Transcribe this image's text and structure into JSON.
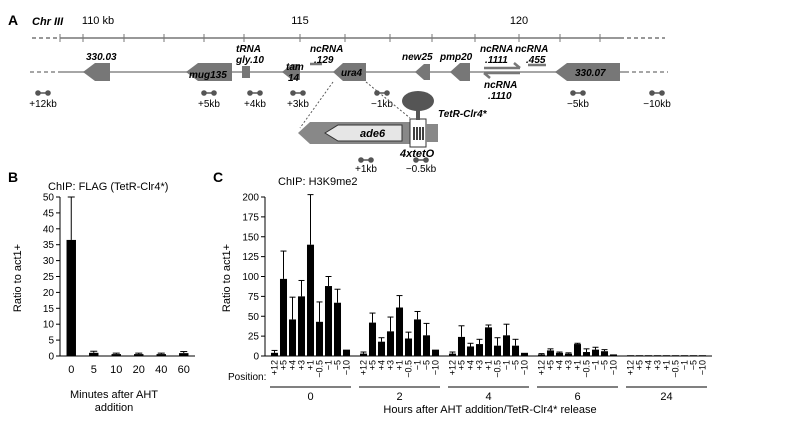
{
  "panel_a": {
    "letter": "A",
    "chr_label": "Chr III",
    "scale_labels": [
      "110 kb",
      "115",
      "120"
    ],
    "genes": [
      "330.03",
      "mug135",
      "tRNA",
      "gly.10",
      "tam",
      "14",
      "ncRNA",
      ".129",
      "ura4",
      "new25",
      "pmp20",
      "ncRNA",
      ".1111",
      "ncRNA",
      ".455",
      "ncRNA",
      ".1110",
      "330.07"
    ],
    "primers": [
      "+12kb",
      "+5kb",
      "+4kb",
      "+3kb",
      "−1kb",
      "−5kb",
      "−10kb"
    ],
    "construct": {
      "gene": "ade6",
      "protein": "TetR-Clr4*",
      "operator": "4xtetO",
      "primers": [
        "+1kb",
        "−0.5kb"
      ]
    }
  },
  "panel_b": {
    "letter": "B",
    "chip_label": "ChIP: FLAG (TetR-Clr4*)",
    "ylabel": "Ratio to act1+",
    "xlabel_line1": "Minutes after AHT",
    "xlabel_line2": "addition"
  },
  "panel_c": {
    "letter": "C",
    "chip_label": "ChIP: H3K9me2",
    "ylabel": "Ratio to act1+",
    "position_label": "Position:",
    "xlabel": "Hours after AHT addition/TetR-Clr4* release"
  },
  "chart_data": [
    {
      "type": "bar",
      "title": "ChIP: FLAG (TetR-Clr4*)",
      "xlabel": "Minutes after AHT addition",
      "ylabel": "Ratio to act1+",
      "categories": [
        "0",
        "5",
        "10",
        "20",
        "40",
        "60"
      ],
      "values": [
        36.5,
        1.0,
        0.6,
        0.6,
        0.6,
        0.9
      ],
      "errors": [
        13.5,
        0.5,
        0.3,
        0.3,
        0.3,
        0.5
      ],
      "ylim": [
        0,
        50
      ],
      "yticks": [
        0,
        5,
        10,
        15,
        20,
        25,
        30,
        35,
        40,
        45,
        50
      ],
      "bar_color": "#000000"
    },
    {
      "type": "bar",
      "title": "ChIP: H3K9me2",
      "xlabel": "Hours after AHT addition/TetR-Clr4* release",
      "ylabel": "Ratio to act1+",
      "ylim": [
        0,
        200
      ],
      "yticks": [
        0,
        25,
        50,
        75,
        100,
        125,
        150,
        175,
        200
      ],
      "positions": [
        "+12",
        "+5",
        "+4",
        "+3",
        "+1",
        "−0.5",
        "−1",
        "−5",
        "−10"
      ],
      "groups": [
        {
          "name": "0",
          "values": [
            4,
            97,
            46,
            75,
            140,
            43,
            88,
            67,
            8
          ],
          "errors": [
            3,
            35,
            28,
            20,
            63,
            25,
            12,
            17,
            0
          ]
        },
        {
          "name": "2",
          "values": [
            3,
            42,
            18,
            31,
            61,
            22,
            46,
            26,
            8
          ],
          "errors": [
            2,
            12,
            5,
            18,
            15,
            8,
            10,
            15,
            0
          ]
        },
        {
          "name": "4",
          "values": [
            3,
            24,
            12,
            15,
            36,
            13,
            26,
            13,
            4
          ],
          "errors": [
            2,
            14,
            4,
            6,
            3,
            10,
            14,
            8,
            0
          ]
        },
        {
          "name": "6",
          "values": [
            2,
            7,
            4,
            3,
            15,
            5,
            8,
            6,
            2
          ],
          "errors": [
            1,
            2,
            1,
            1,
            1,
            4,
            3,
            2,
            0
          ]
        },
        {
          "name": "24",
          "values": [
            1,
            1,
            1,
            1,
            1,
            1,
            1,
            1,
            1
          ],
          "errors": [
            0,
            0,
            0,
            0,
            0,
            0,
            0,
            0,
            0
          ]
        }
      ],
      "bar_color": "#000000"
    }
  ]
}
